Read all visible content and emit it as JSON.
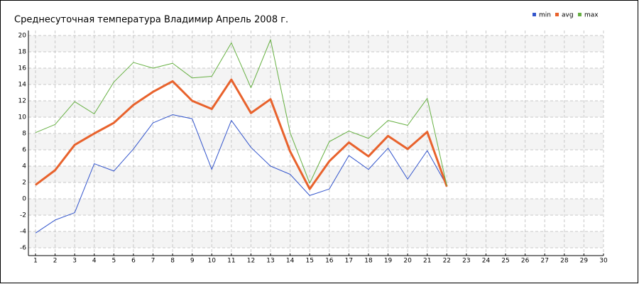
{
  "chart_data": {
    "type": "line",
    "title": "Среднесуточная температура Владимир  Апрель 2008 г.",
    "x": [
      1,
      2,
      3,
      4,
      5,
      6,
      7,
      8,
      9,
      10,
      11,
      12,
      13,
      14,
      15,
      16,
      17,
      18,
      19,
      20,
      21,
      22
    ],
    "series": [
      {
        "name": "min",
        "color": "#3355cc",
        "values": [
          -4.2,
          -2.6,
          -1.7,
          4.3,
          3.4,
          6.1,
          9.3,
          10.3,
          9.8,
          3.6,
          9.6,
          6.3,
          4.0,
          3.0,
          0.4,
          1.2,
          5.3,
          3.6,
          6.2,
          2.4,
          5.9,
          1.6
        ]
      },
      {
        "name": "avg",
        "color": "#e8622c",
        "values": [
          1.7,
          3.5,
          6.6,
          8.0,
          9.3,
          11.5,
          13.1,
          14.4,
          12.0,
          11.0,
          14.6,
          10.5,
          12.2,
          5.8,
          1.2,
          4.6,
          6.9,
          5.2,
          7.7,
          6.1,
          8.2,
          1.5
        ]
      },
      {
        "name": "max",
        "color": "#66b042",
        "values": [
          8.1,
          9.1,
          11.9,
          10.4,
          14.3,
          16.7,
          16.0,
          16.6,
          14.8,
          15.0,
          19.1,
          13.6,
          19.5,
          8.1,
          1.9,
          7.0,
          8.3,
          7.4,
          9.6,
          9.0,
          12.3,
          1.6
        ]
      }
    ],
    "xlim": [
      1,
      30
    ],
    "xticks": [
      1,
      2,
      3,
      4,
      5,
      6,
      7,
      8,
      9,
      10,
      11,
      12,
      13,
      14,
      15,
      16,
      17,
      18,
      19,
      20,
      21,
      22,
      23,
      24,
      25,
      26,
      27,
      28,
      29,
      30
    ],
    "ylim": [
      -6,
      20
    ],
    "yticks": [
      -6,
      -4,
      -2,
      0,
      2,
      4,
      6,
      8,
      10,
      12,
      14,
      16,
      18,
      20
    ],
    "grid": true,
    "legend": "top-right"
  }
}
